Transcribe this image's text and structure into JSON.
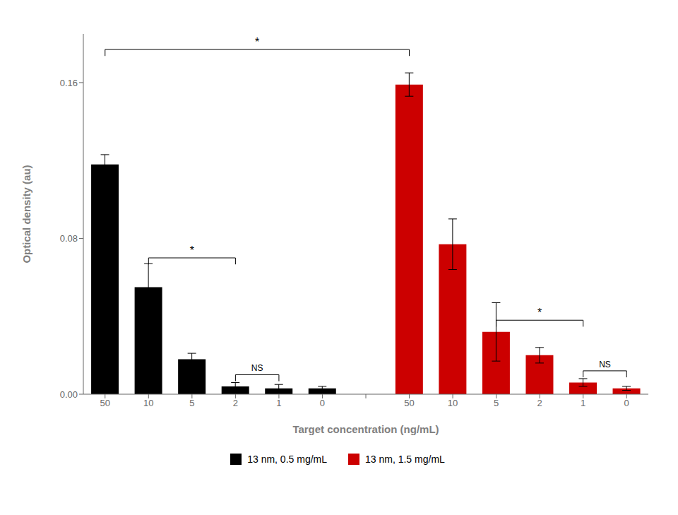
{
  "chart_data": {
    "type": "bar",
    "categories": [
      "50",
      "10",
      "5",
      "2",
      "1",
      "0",
      null,
      "50",
      "10",
      "5",
      "2",
      "1",
      "0"
    ],
    "series": [
      {
        "name": "13 nm, 0.5 mg/mL",
        "color": "#000000",
        "values": [
          0.118,
          0.055,
          0.018,
          0.004,
          0.003,
          0.003,
          null,
          null,
          null,
          null,
          null,
          null,
          null
        ],
        "errors": [
          0.005,
          0.012,
          0.003,
          0.002,
          0.002,
          0.001,
          null,
          null,
          null,
          null,
          null,
          null,
          null
        ]
      },
      {
        "name": "13 nm, 1.5 mg/mL",
        "color": "#cc0000",
        "values": [
          null,
          null,
          null,
          null,
          null,
          null,
          null,
          0.159,
          0.077,
          0.032,
          0.02,
          0.006,
          0.003
        ],
        "errors": [
          null,
          null,
          null,
          null,
          null,
          null,
          null,
          0.006,
          0.013,
          0.015,
          0.004,
          0.002,
          0.001
        ]
      }
    ],
    "xlabel": "Target concentration (ng/mL)",
    "ylabel": "Optical density (au)",
    "ylim": [
      0.0,
      0.185
    ],
    "yticks": [
      {
        "value": 0.0,
        "label": "0.00"
      },
      {
        "value": 0.08,
        "label": "0.08"
      },
      {
        "value": 0.16,
        "label": "0.16"
      }
    ],
    "legend": "bottom",
    "annotations": [
      {
        "text": "*",
        "from": [
          "13 nm, 0.5 mg/mL",
          "10"
        ],
        "to": [
          "13 nm, 0.5 mg/mL",
          "2"
        ],
        "y": 0.07
      },
      {
        "text": "NS",
        "from": [
          "13 nm, 0.5 mg/mL",
          "2"
        ],
        "to": [
          "13 nm, 0.5 mg/mL",
          "1"
        ],
        "y": 0.01
      },
      {
        "text": "*",
        "from": [
          "13 nm, 1.5 mg/mL",
          "5"
        ],
        "to": [
          "13 nm, 1.5 mg/mL",
          "1"
        ],
        "y": 0.038
      },
      {
        "text": "NS",
        "from": [
          "13 nm, 1.5 mg/mL",
          "1"
        ],
        "to": [
          "13 nm, 1.5 mg/mL",
          "0"
        ],
        "y": 0.012
      },
      {
        "text": "*",
        "from": [
          "13 nm, 0.5 mg/mL",
          "50"
        ],
        "to": [
          "13 nm, 1.5 mg/mL",
          "50"
        ],
        "y": 0.177
      }
    ]
  }
}
